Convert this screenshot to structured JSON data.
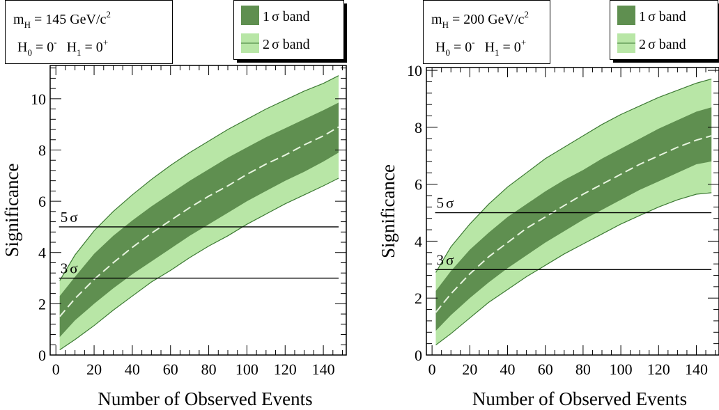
{
  "chart_data": [
    {
      "type": "area",
      "info_box": {
        "line1_main": "m",
        "line1_sub": "H",
        "line1_rest": " = 145 GeV/c",
        "line1_sup": "2",
        "line2_h0": "H",
        "line2_h0_sub": "0",
        "line2_h0_eq": " = 0",
        "line2_h0_sup": "-",
        "line2_h1": "H",
        "line2_h1_sub": "1",
        "line2_h1_eq": " = 0",
        "line2_h1_sup": "+"
      },
      "legend": {
        "placement": "top-right",
        "entries": [
          {
            "pre": "1",
            "greek": "σ",
            "post": " band",
            "color": "#5f8f50"
          },
          {
            "pre": "2",
            "greek": "σ",
            "post": " band",
            "color": "#b8e6a6"
          }
        ]
      },
      "xlabel": "Number of Observed Events",
      "ylabel": "Significance",
      "xlim": [
        -3,
        152
      ],
      "ylim": [
        0,
        11.3
      ],
      "xticks": [
        0,
        20,
        40,
        60,
        80,
        100,
        120,
        140
      ],
      "yticks": [
        0,
        2,
        4,
        6,
        8,
        10
      ],
      "x": [
        2,
        10,
        20,
        30,
        40,
        50,
        60,
        70,
        80,
        90,
        100,
        110,
        120,
        130,
        140,
        148
      ],
      "series": [
        {
          "role": "2sigma_upper",
          "values": [
            2.9,
            3.9,
            4.85,
            5.6,
            6.25,
            6.85,
            7.4,
            7.9,
            8.35,
            8.8,
            9.2,
            9.6,
            9.95,
            10.3,
            10.6,
            10.9
          ]
        },
        {
          "role": "1sigma_upper",
          "values": [
            2.3,
            3.05,
            3.95,
            4.65,
            5.25,
            5.8,
            6.3,
            6.8,
            7.25,
            7.7,
            8.1,
            8.5,
            8.85,
            9.2,
            9.55,
            9.85
          ]
        },
        {
          "role": "median",
          "values": [
            1.5,
            2.2,
            2.95,
            3.6,
            4.2,
            4.75,
            5.25,
            5.75,
            6.2,
            6.6,
            7.05,
            7.45,
            7.8,
            8.2,
            8.55,
            8.9
          ]
        },
        {
          "role": "1sigma_lower",
          "values": [
            0.7,
            1.35,
            2.0,
            2.6,
            3.15,
            3.65,
            4.15,
            4.65,
            5.1,
            5.55,
            6.0,
            6.4,
            6.8,
            7.15,
            7.55,
            7.9
          ]
        },
        {
          "role": "2sigma_lower",
          "values": [
            0.2,
            0.6,
            1.15,
            1.75,
            2.3,
            2.85,
            3.3,
            3.8,
            4.25,
            4.65,
            5.1,
            5.5,
            5.9,
            6.25,
            6.6,
            6.9
          ]
        }
      ],
      "reference_lines": [
        {
          "y": 5,
          "pre": "5",
          "greek": "σ"
        },
        {
          "y": 3,
          "pre": "3",
          "greek": "σ"
        }
      ],
      "grid": false,
      "colors": {
        "band_1sigma": "#5f8f50",
        "band_2sigma": "#b8e6a6",
        "band_edge": "#3d7a34",
        "median": "#e8f5e0"
      }
    },
    {
      "type": "area",
      "info_box": {
        "line1_main": "m",
        "line1_sub": "H",
        "line1_rest": " = 200 GeV/c",
        "line1_sup": "2",
        "line2_h0": "H",
        "line2_h0_sub": "0",
        "line2_h0_eq": " = 0",
        "line2_h0_sup": "-",
        "line2_h1": "H",
        "line2_h1_sub": "1",
        "line2_h1_eq": " = 0",
        "line2_h1_sup": "+"
      },
      "legend": {
        "placement": "top-right",
        "entries": [
          {
            "pre": "1",
            "greek": "σ",
            "post": " band",
            "color": "#5f8f50"
          },
          {
            "pre": "2",
            "greek": "σ",
            "post": " band",
            "color": "#b8e6a6"
          }
        ]
      },
      "xlabel": "Number of Observed Events",
      "ylabel": "Significance",
      "xlim": [
        -3,
        152
      ],
      "ylim": [
        0,
        10.1
      ],
      "xticks": [
        0,
        20,
        40,
        60,
        80,
        100,
        120,
        140
      ],
      "yticks": [
        0,
        2,
        4,
        6,
        8,
        10
      ],
      "x": [
        2,
        10,
        20,
        30,
        40,
        50,
        60,
        70,
        80,
        90,
        100,
        110,
        120,
        130,
        140,
        148
      ],
      "series": [
        {
          "role": "2sigma_upper",
          "values": [
            2.9,
            3.8,
            4.6,
            5.3,
            5.9,
            6.4,
            6.9,
            7.3,
            7.7,
            8.1,
            8.45,
            8.75,
            9.05,
            9.3,
            9.55,
            9.7
          ]
        },
        {
          "role": "1sigma_upper",
          "values": [
            2.25,
            2.95,
            3.7,
            4.3,
            4.85,
            5.3,
            5.75,
            6.15,
            6.5,
            6.9,
            7.25,
            7.6,
            7.95,
            8.25,
            8.55,
            8.7
          ]
        },
        {
          "role": "median",
          "values": [
            1.5,
            2.15,
            2.85,
            3.45,
            3.95,
            4.45,
            4.85,
            5.25,
            5.65,
            6.0,
            6.35,
            6.7,
            7.0,
            7.3,
            7.55,
            7.7
          ]
        },
        {
          "role": "1sigma_lower",
          "values": [
            0.85,
            1.4,
            2.0,
            2.55,
            3.05,
            3.5,
            3.95,
            4.35,
            4.75,
            5.1,
            5.45,
            5.8,
            6.1,
            6.4,
            6.7,
            6.8
          ]
        },
        {
          "role": "2sigma_lower",
          "values": [
            0.35,
            0.75,
            1.3,
            1.85,
            2.3,
            2.75,
            3.15,
            3.55,
            3.9,
            4.25,
            4.6,
            4.9,
            5.2,
            5.45,
            5.65,
            5.7
          ]
        }
      ],
      "reference_lines": [
        {
          "y": 5,
          "pre": "5",
          "greek": "σ"
        },
        {
          "y": 3,
          "pre": "3",
          "greek": "σ"
        }
      ],
      "grid": false,
      "colors": {
        "band_1sigma": "#5f8f50",
        "band_2sigma": "#b8e6a6",
        "band_edge": "#3d7a34",
        "median": "#e8f5e0"
      }
    }
  ]
}
